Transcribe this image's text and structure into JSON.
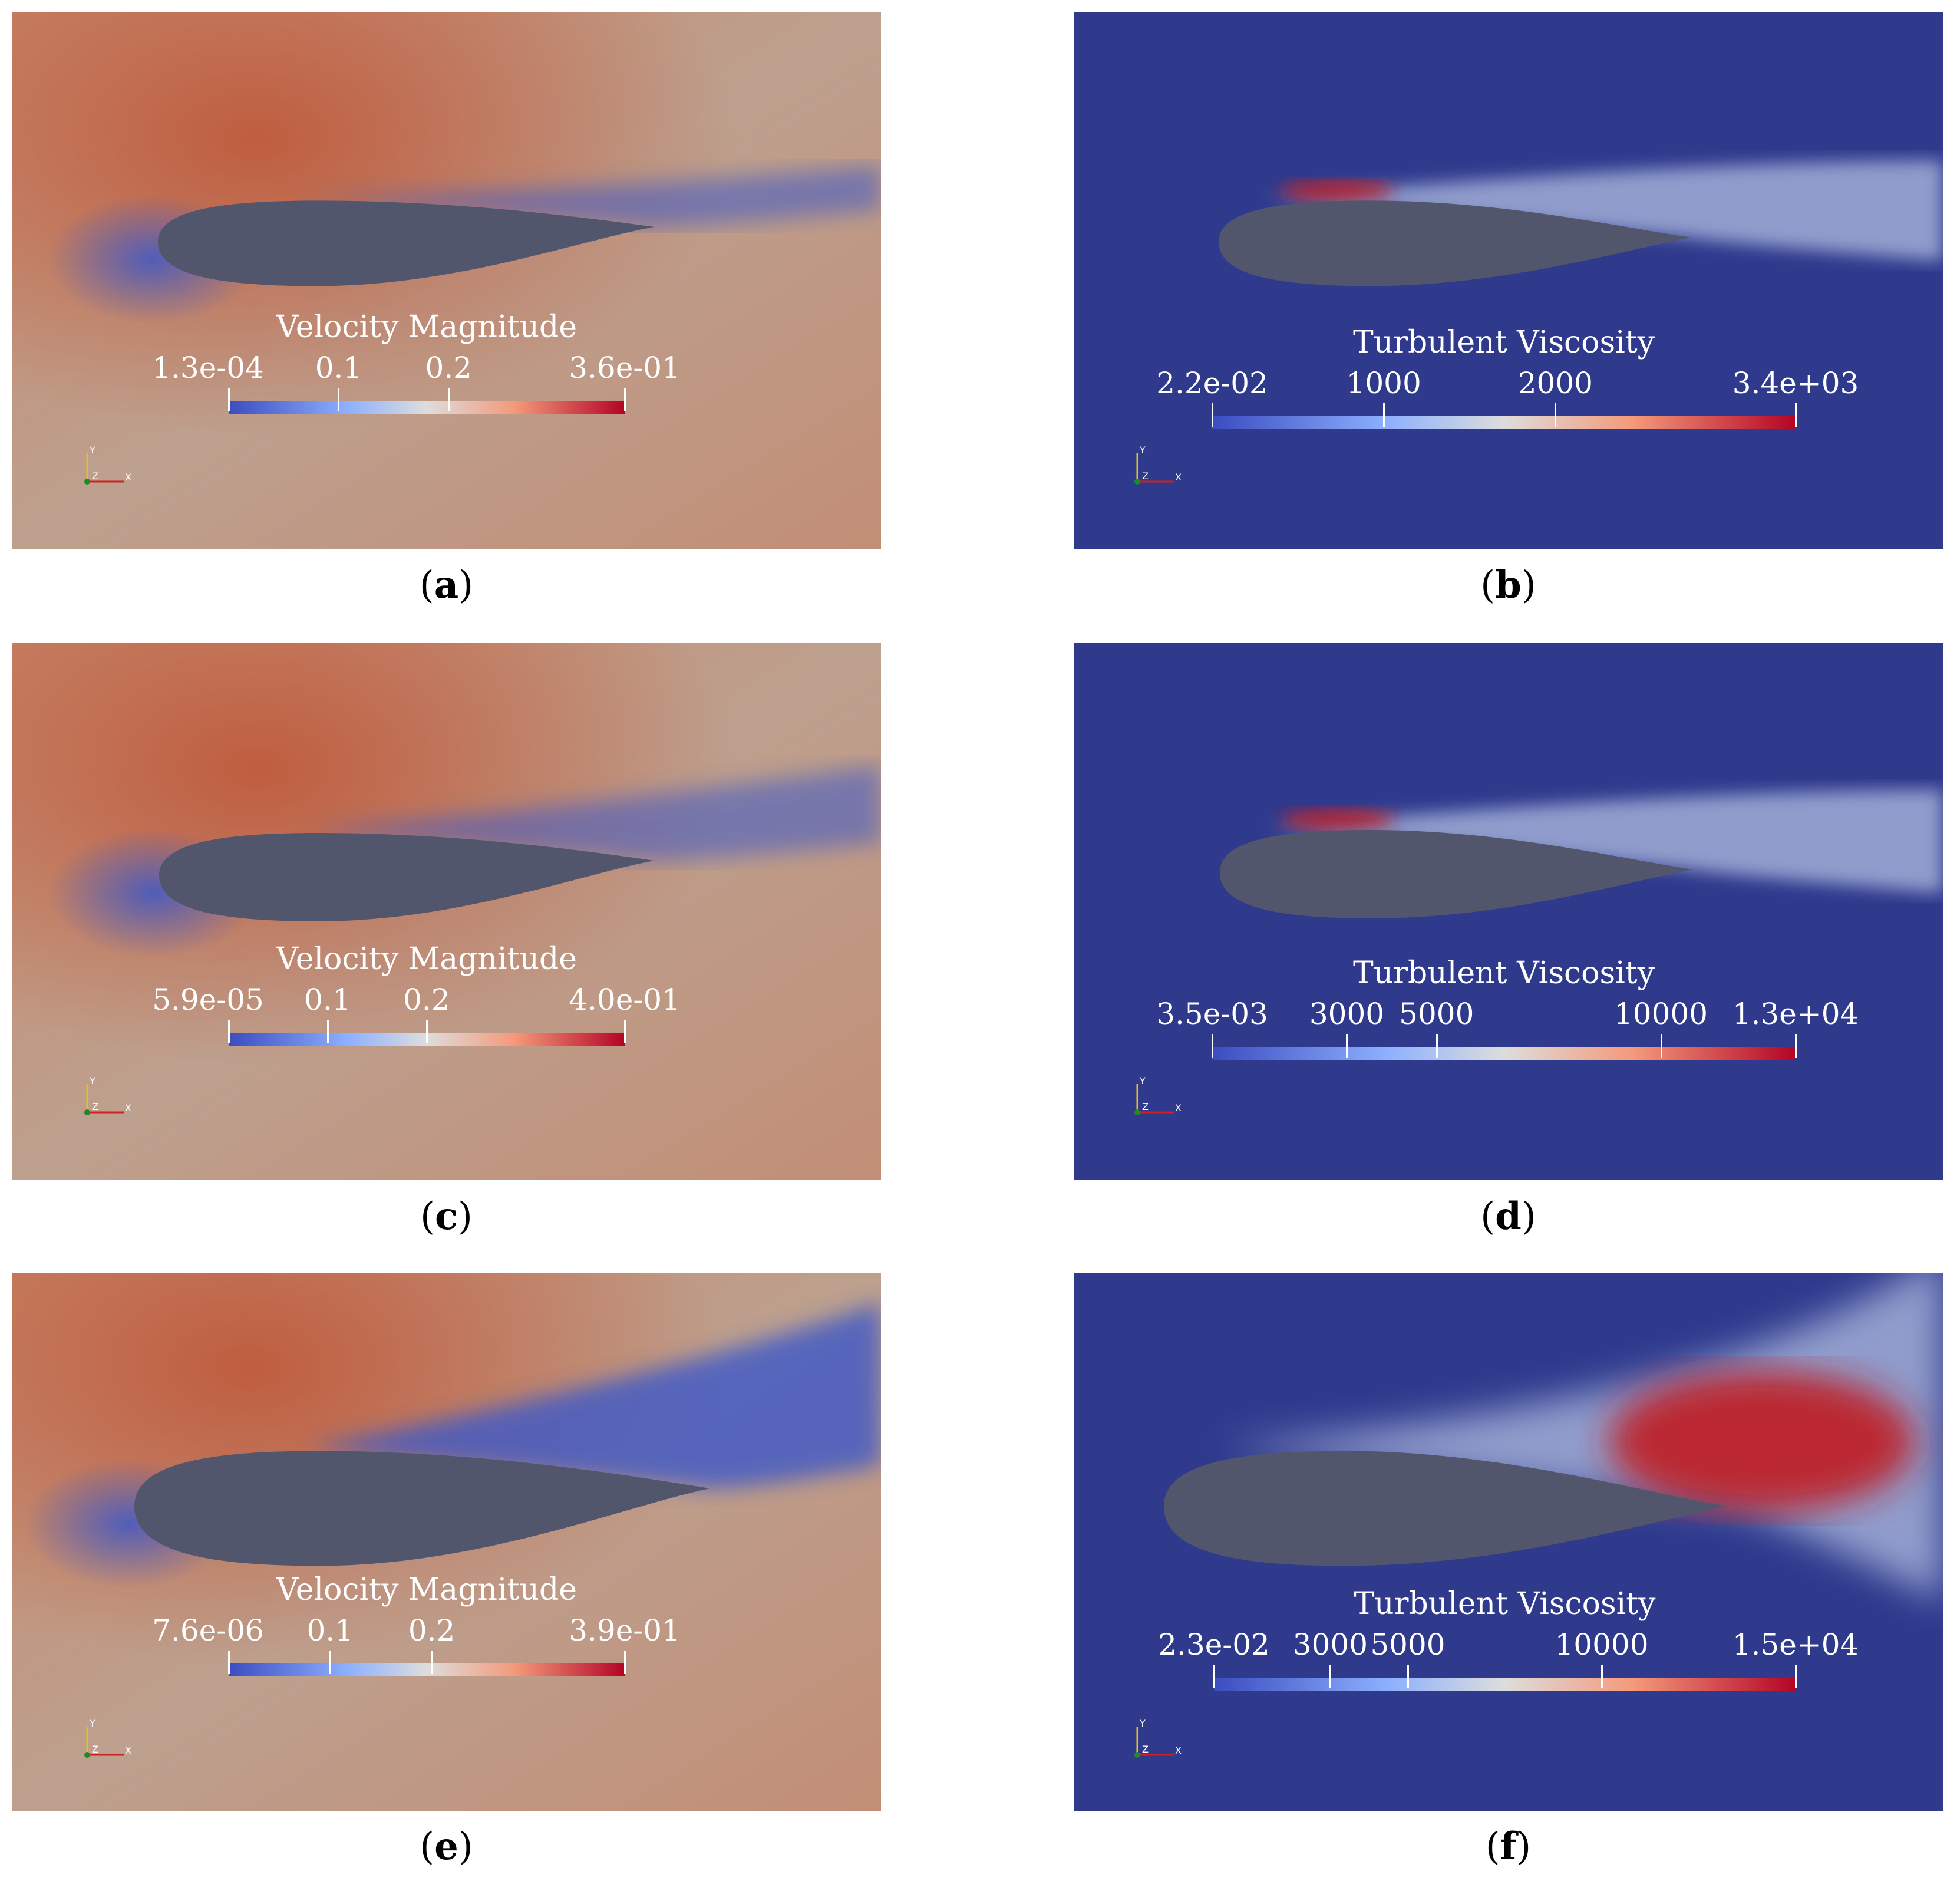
{
  "colors": {
    "airfoil": "#52566d",
    "velocity_field": "#c08c75",
    "velocity_high": "#c05a3c",
    "velocity_low": "#3c58c8",
    "viscosity_field": "#2f3a8d",
    "viscosity_high": "#c01f24",
    "colormap_low": "#3b4cc0",
    "colormap_mid": "#dddddd",
    "colormap_high": "#b40426"
  },
  "panels": [
    {
      "id": "a",
      "kind": "velocity",
      "title": "Velocity Magnitude",
      "min_label": "1.3e-04",
      "max_label": "3.6e-01",
      "tick_labels": [
        "0.1",
        "0.2"
      ],
      "range": [
        0.00013,
        0.36
      ],
      "ticks": [
        0.1,
        0.2
      ],
      "caption_letter": "a",
      "axes_icon": "orientation-axes-icon"
    },
    {
      "id": "b",
      "kind": "viscosity",
      "title": "Turbulent Viscosity",
      "min_label": "2.2e-02",
      "max_label": "3.4e+03",
      "tick_labels": [
        "1000",
        "2000"
      ],
      "range": [
        0.022,
        3400
      ],
      "ticks": [
        1000,
        2000
      ],
      "caption_letter": "b",
      "axes_icon": "orientation-axes-icon"
    },
    {
      "id": "c",
      "kind": "velocity",
      "title": "Velocity Magnitude",
      "min_label": "5.9e-05",
      "max_label": "4.0e-01",
      "tick_labels": [
        "0.1",
        "0.2"
      ],
      "range": [
        5.9e-05,
        0.4
      ],
      "ticks": [
        0.1,
        0.2
      ],
      "caption_letter": "c",
      "axes_icon": "orientation-axes-icon"
    },
    {
      "id": "d",
      "kind": "viscosity",
      "title": "Turbulent Viscosity",
      "min_label": "3.5e-03",
      "max_label": "1.3e+04",
      "tick_labels": [
        "3000",
        "5000",
        "10000"
      ],
      "range": [
        0.0035,
        13000
      ],
      "ticks": [
        3000,
        5000,
        10000
      ],
      "caption_letter": "d",
      "axes_icon": "orientation-axes-icon"
    },
    {
      "id": "e",
      "kind": "velocity",
      "title": "Velocity Magnitude",
      "min_label": "7.6e-06",
      "max_label": "3.9e-01",
      "tick_labels": [
        "0.1",
        "0.2"
      ],
      "range": [
        7.6e-06,
        0.39
      ],
      "ticks": [
        0.1,
        0.2
      ],
      "caption_letter": "e",
      "axes_icon": "orientation-axes-icon"
    },
    {
      "id": "f",
      "kind": "viscosity",
      "title": "Turbulent Viscosity",
      "min_label": "2.3e-02",
      "max_label": "1.5e+04",
      "tick_labels": [
        "3000",
        "5000",
        "10000"
      ],
      "range": [
        0.023,
        15000
      ],
      "ticks": [
        3000,
        5000,
        10000
      ],
      "caption_letter": "f",
      "axes_icon": "orientation-axes-icon"
    }
  ],
  "axis_letters": {
    "y": "Y",
    "z": "Z",
    "x": "X"
  }
}
